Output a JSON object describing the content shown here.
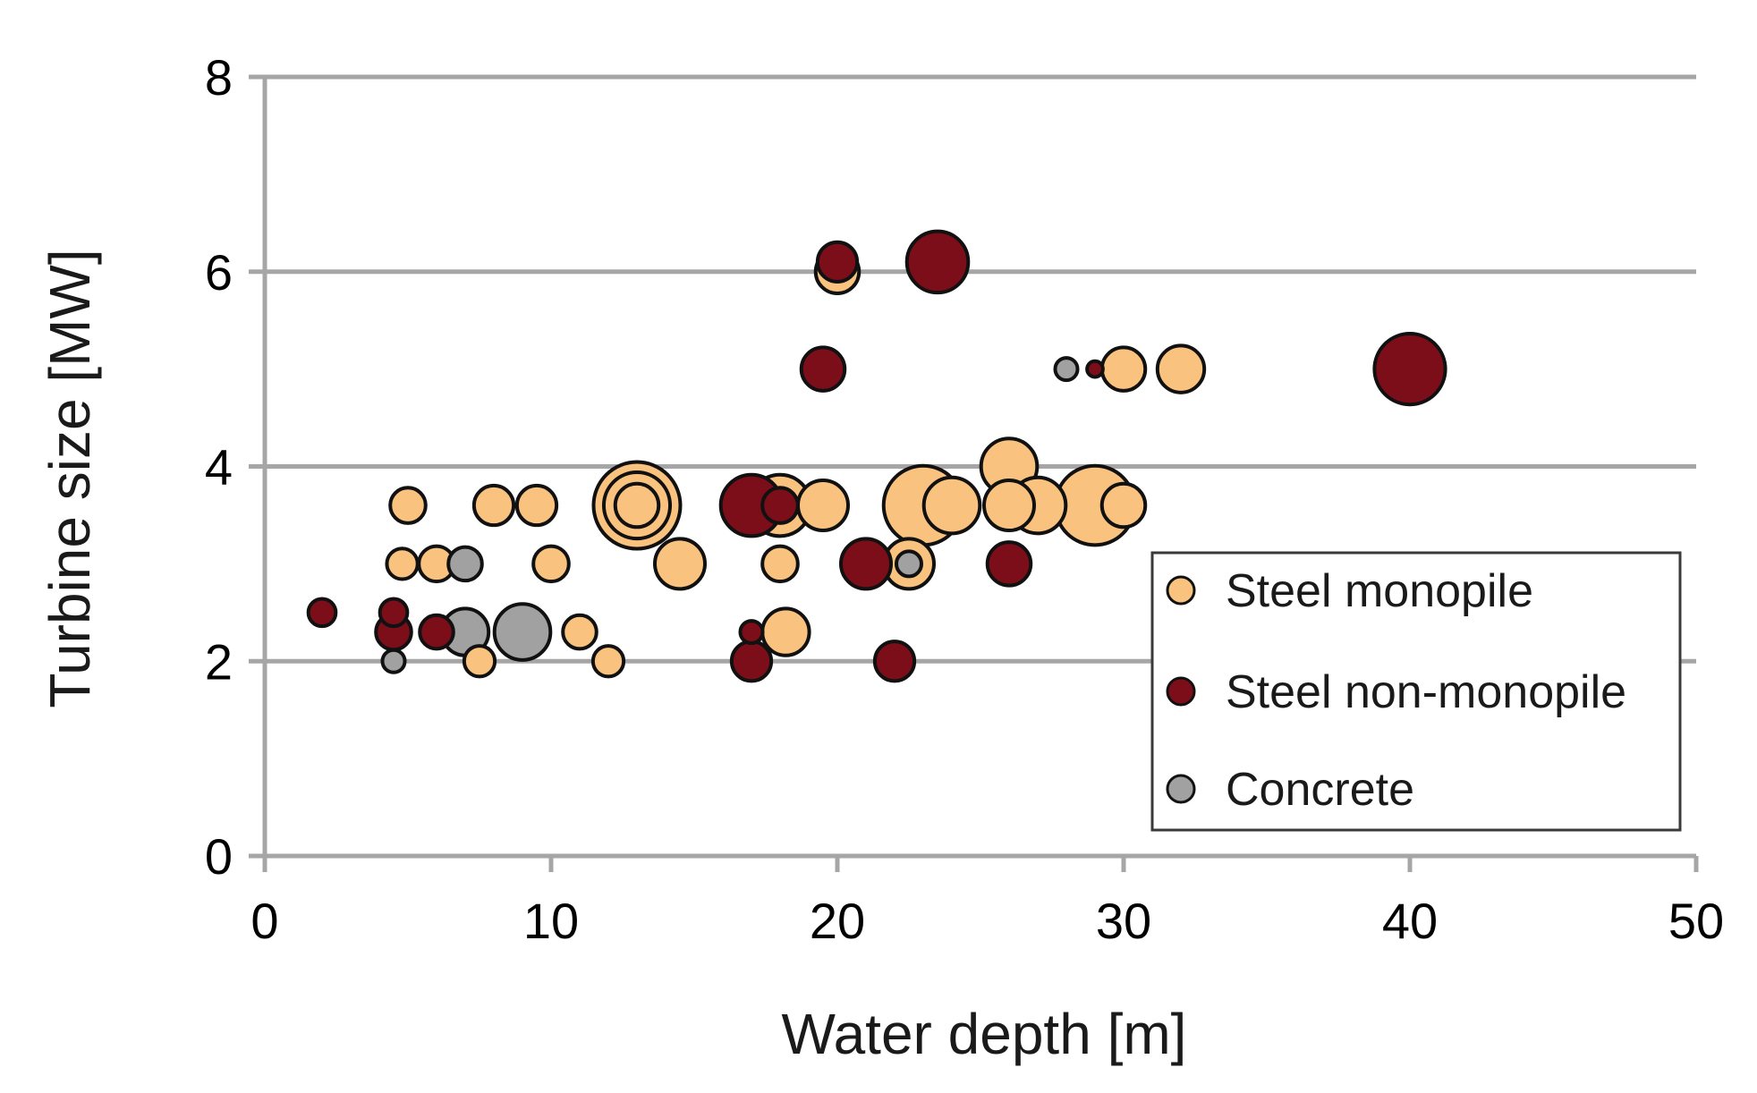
{
  "chart_data": {
    "type": "scatter",
    "subtype": "bubble",
    "title": "",
    "xlabel": "Water depth [m]",
    "ylabel": "Turbine size [MW]",
    "xlim": [
      0,
      50
    ],
    "ylim": [
      0,
      8
    ],
    "xticks": [
      0,
      10,
      20,
      30,
      40,
      50
    ],
    "yticks": [
      0,
      2,
      4,
      6,
      8
    ],
    "grid": "horizontal",
    "legend_position": "bottom-right",
    "colors": {
      "Steel monopile": "#fac27f",
      "Steel non-monopile": "#7c0e19",
      "Concrete": "#a1a1a1"
    },
    "series": [
      {
        "name": "Steel monopile",
        "points": [
          {
            "x": 5,
            "y": 3.6,
            "size": 2
          },
          {
            "x": 4.8,
            "y": 3.0,
            "size": 1.5
          },
          {
            "x": 6,
            "y": 3.0,
            "size": 2
          },
          {
            "x": 8,
            "y": 3.6,
            "size": 2.5
          },
          {
            "x": 9.5,
            "y": 3.6,
            "size": 2.5
          },
          {
            "x": 10,
            "y": 3.0,
            "size": 2
          },
          {
            "x": 7.5,
            "y": 2.0,
            "size": 1.5
          },
          {
            "x": 11,
            "y": 2.3,
            "size": 1.8
          },
          {
            "x": 12,
            "y": 2.0,
            "size": 1.5
          },
          {
            "x": 13,
            "y": 3.6,
            "size": 12
          },
          {
            "x": 13,
            "y": 3.6,
            "size": 7
          },
          {
            "x": 13,
            "y": 3.6,
            "size": 3
          },
          {
            "x": 14.5,
            "y": 3.0,
            "size": 4
          },
          {
            "x": 18,
            "y": 3.6,
            "size": 6
          },
          {
            "x": 19.5,
            "y": 3.6,
            "size": 4
          },
          {
            "x": 18,
            "y": 3.0,
            "size": 2
          },
          {
            "x": 18.2,
            "y": 2.3,
            "size": 3.5
          },
          {
            "x": 20,
            "y": 6.0,
            "size": 3
          },
          {
            "x": 23,
            "y": 3.6,
            "size": 10
          },
          {
            "x": 22.5,
            "y": 3.0,
            "size": 4
          },
          {
            "x": 24,
            "y": 3.6,
            "size": 5
          },
          {
            "x": 26,
            "y": 4.0,
            "size": 5
          },
          {
            "x": 26,
            "y": 3.6,
            "size": 4
          },
          {
            "x": 27,
            "y": 3.6,
            "size": 5
          },
          {
            "x": 29,
            "y": 3.6,
            "size": 10
          },
          {
            "x": 30,
            "y": 3.6,
            "size": 3
          },
          {
            "x": 30,
            "y": 5.0,
            "size": 3
          },
          {
            "x": 32,
            "y": 5.0,
            "size": 3.5
          }
        ]
      },
      {
        "name": "Steel non-monopile",
        "points": [
          {
            "x": 2,
            "y": 2.5,
            "size": 1.2
          },
          {
            "x": 4.5,
            "y": 2.5,
            "size": 1.2
          },
          {
            "x": 4.5,
            "y": 2.3,
            "size": 2
          },
          {
            "x": 6,
            "y": 2.3,
            "size": 1.8
          },
          {
            "x": 17,
            "y": 3.6,
            "size": 6
          },
          {
            "x": 18,
            "y": 3.6,
            "size": 2
          },
          {
            "x": 17,
            "y": 2.0,
            "size": 2.5
          },
          {
            "x": 17,
            "y": 2.3,
            "size": 0.8
          },
          {
            "x": 19.5,
            "y": 5.0,
            "size": 3
          },
          {
            "x": 20,
            "y": 6.1,
            "size": 2.5
          },
          {
            "x": 21,
            "y": 3.0,
            "size": 4
          },
          {
            "x": 22,
            "y": 2.0,
            "size": 2.5
          },
          {
            "x": 23.5,
            "y": 6.1,
            "size": 6
          },
          {
            "x": 26,
            "y": 3.0,
            "size": 3
          },
          {
            "x": 29,
            "y": 5.0,
            "size": 0.4
          },
          {
            "x": 40,
            "y": 5.0,
            "size": 8
          }
        ]
      },
      {
        "name": "Concrete",
        "points": [
          {
            "x": 4.5,
            "y": 2.0,
            "size": 0.8
          },
          {
            "x": 7,
            "y": 3.0,
            "size": 1.8
          },
          {
            "x": 7,
            "y": 2.3,
            "size": 3.5
          },
          {
            "x": 9,
            "y": 2.3,
            "size": 5
          },
          {
            "x": 22.5,
            "y": 3.0,
            "size": 1
          },
          {
            "x": 28,
            "y": 5.0,
            "size": 0.8
          }
        ]
      }
    ],
    "legend": [
      {
        "label": "Steel monopile",
        "color": "#fac27f"
      },
      {
        "label": "Steel non-monopile",
        "color": "#7c0e19"
      },
      {
        "label": "Concrete",
        "color": "#a1a1a1"
      }
    ]
  }
}
